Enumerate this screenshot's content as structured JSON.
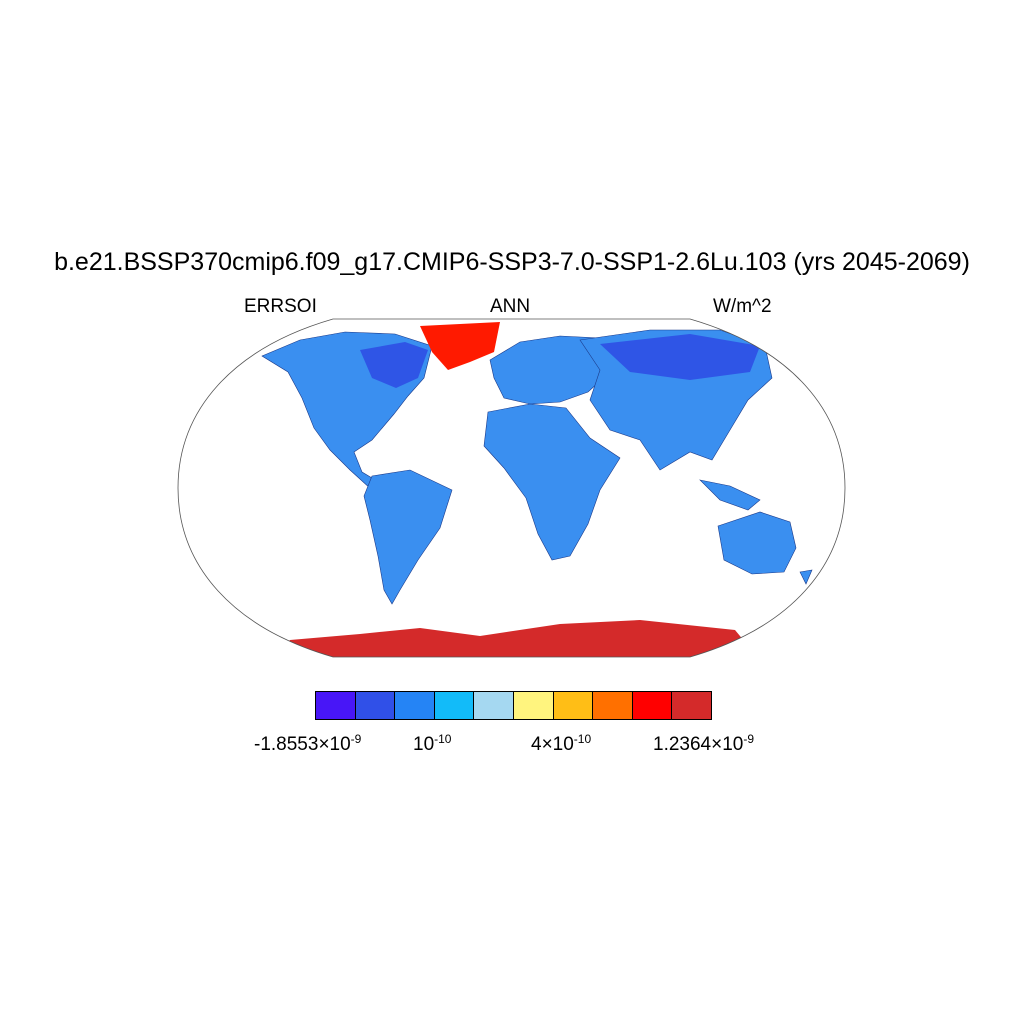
{
  "title": "b.e21.BSSP370cmip6.f09_g17.CMIP6-SSP3-7.0-SSP1-2.6Lu.103 (yrs 2045-2069)",
  "left_label": "ERRSOI",
  "center_label": "ANN",
  "right_label": "W/m^2",
  "colorbar": {
    "colors": [
      "#4816f7",
      "#3050e8",
      "#2584f5",
      "#12bbf9",
      "#a5d8f1",
      "#fff47e",
      "#ffbe16",
      "#ff7000",
      "#ff0000",
      "#d42a2a"
    ],
    "labels": [
      {
        "mantissa": "-1.8553×10",
        "exponent": "-9"
      },
      {
        "mantissa": "10",
        "exponent": "-10"
      },
      {
        "mantissa": "4×10",
        "exponent": "-10"
      },
      {
        "mantissa": "1.2364×10",
        "exponent": "-9"
      }
    ]
  },
  "map": {
    "projection": "Robinson",
    "land_color": "#3a8ff0",
    "land_dark_color": "#2f55e6",
    "greenland_color": "#ff1a00",
    "antarctica_color": "#d42a2a"
  }
}
